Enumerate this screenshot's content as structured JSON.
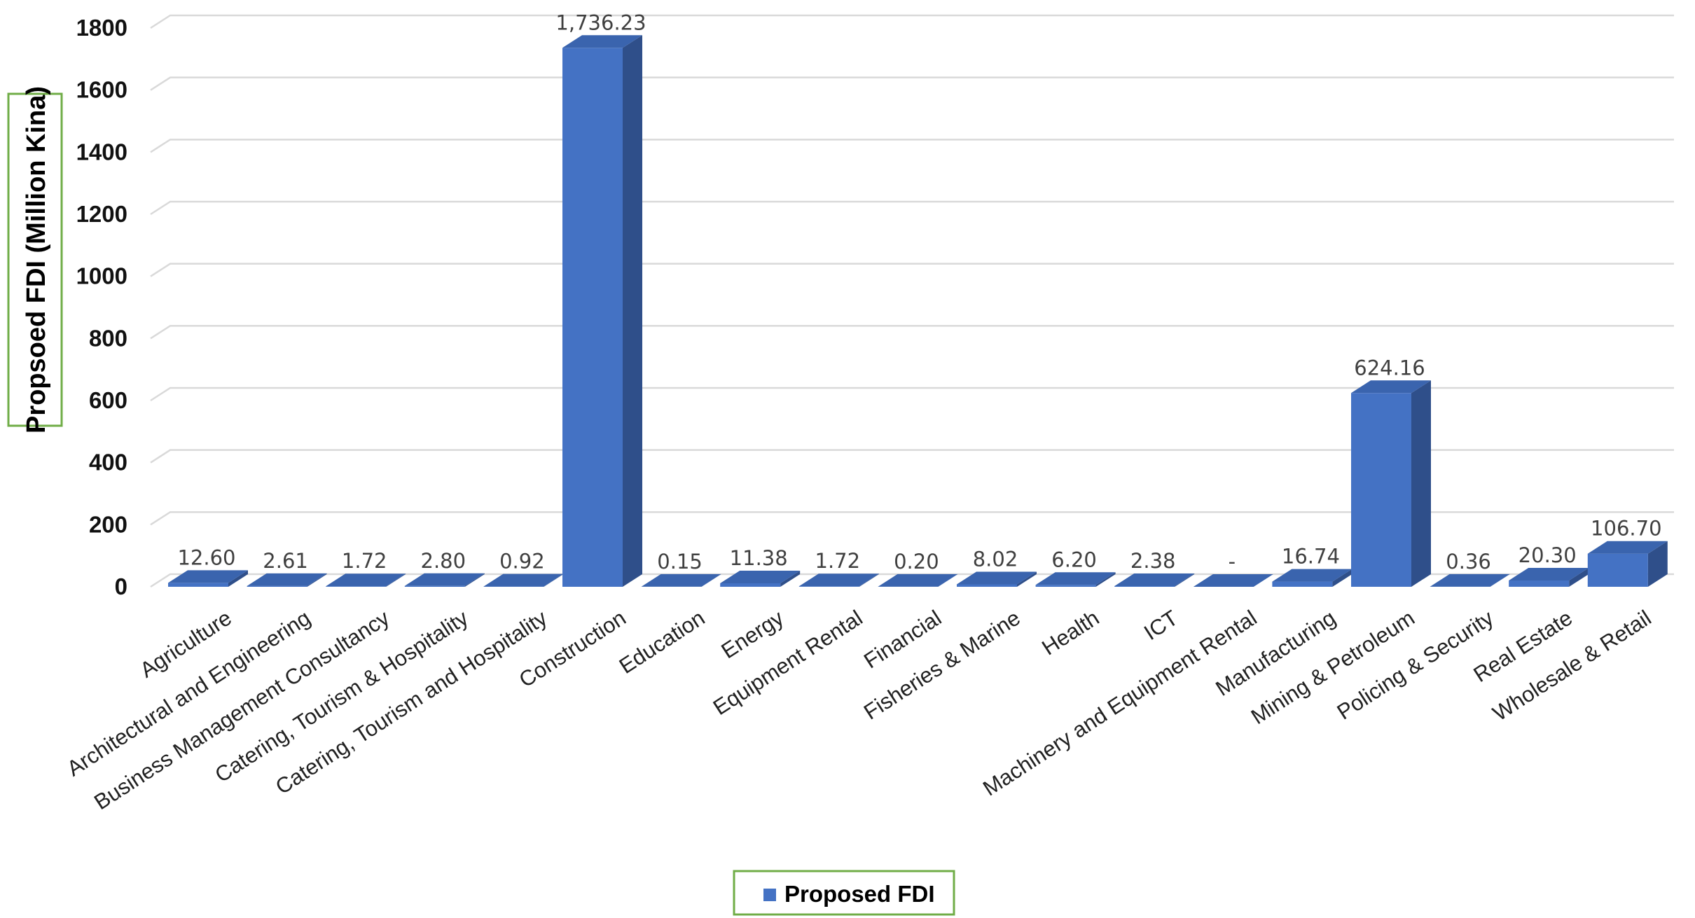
{
  "chart_data": {
    "type": "bar",
    "style": "3d-column",
    "categories": [
      "Agriculture",
      "Architectural and Engineering",
      "Business Management Consultancy",
      "Catering, Tourism & Hospitality",
      "Catering, Tourism and Hospitality",
      "Construction",
      "Education",
      "Energy",
      "Equipment Rental",
      "Financial",
      "Fisheries & Marine",
      "Health",
      "ICT",
      "Machinery and Equipment Rental",
      "Manufacturing",
      "Mining & Petroleum",
      "Policing & Security",
      "Real Estate",
      "Wholesale & Retail"
    ],
    "series": [
      {
        "name": "Proposed FDI",
        "color": "#4472C4",
        "values": [
          12.6,
          2.61,
          1.72,
          2.8,
          0.92,
          1736.23,
          0.15,
          11.38,
          1.72,
          0.2,
          8.02,
          6.2,
          2.38,
          0,
          16.74,
          624.16,
          0.36,
          20.3,
          106.7
        ],
        "data_labels": [
          "12.60",
          "2.61",
          "1.72",
          "2.80",
          "0.92",
          "1,736.23",
          "0.15",
          "11.38",
          "1.72",
          "0.20",
          "8.02",
          "6.20",
          "2.38",
          "-",
          "16.74",
          "624.16",
          "0.36",
          "20.30",
          "106.70"
        ]
      }
    ],
    "ylabel": "Propsoed FDI (Million Kina)",
    "ylim": [
      0,
      1800
    ],
    "yticks": [
      "0",
      "200",
      "400",
      "600",
      "800",
      "1000",
      "1200",
      "1400",
      "1600",
      "1800"
    ],
    "grid": true,
    "legend": {
      "position": "bottom",
      "entries": [
        "Proposed FDI"
      ]
    }
  },
  "colors": {
    "bar_front": "#4472C4",
    "bar_side": "#2F4F8A",
    "bar_top": "#3A64AE",
    "grid": "#D9D9D9",
    "frame_border": "#70AD47"
  }
}
